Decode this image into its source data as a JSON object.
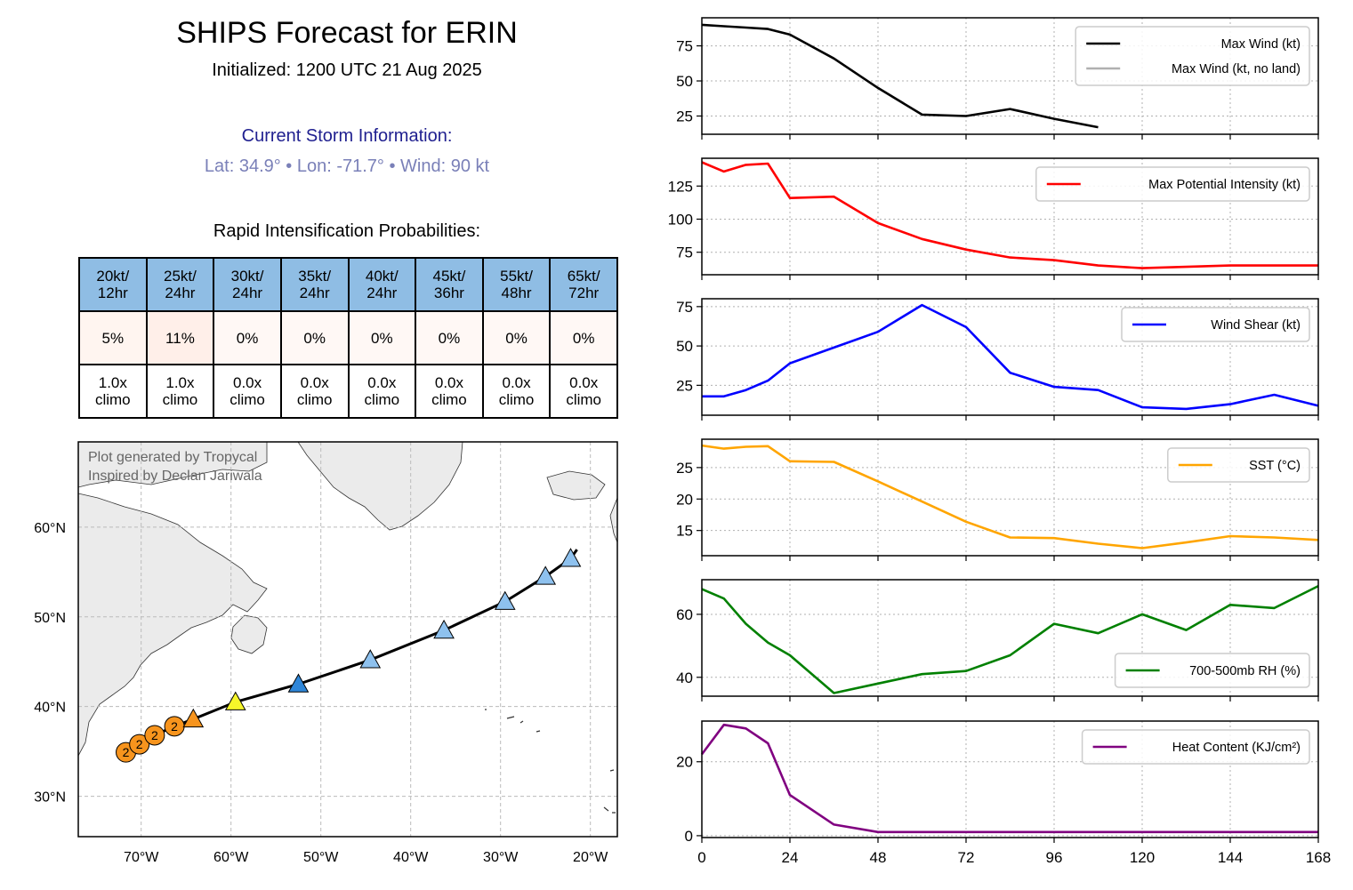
{
  "header": {
    "title": "SHIPS Forecast for ERIN",
    "initialized": "Initialized: 1200 UTC 21 Aug 2025"
  },
  "storm": {
    "heading": "Current Storm Information:",
    "info": "Lat: 34.9° • Lon: -71.7° • Wind: 90 kt"
  },
  "ri": {
    "heading": "Rapid Intensification Probabilities:",
    "columns": [
      {
        "l1": "20kt/",
        "l2": "12hr",
        "prob": "5%",
        "climo": "1.0x",
        "climo2": "climo",
        "color": "#fff5f0"
      },
      {
        "l1": "25kt/",
        "l2": "24hr",
        "prob": "11%",
        "climo": "1.0x",
        "climo2": "climo",
        "color": "#ffefe9"
      },
      {
        "l1": "30kt/",
        "l2": "24hr",
        "prob": "0%",
        "climo": "0.0x",
        "climo2": "climo",
        "color": "#fff8f5"
      },
      {
        "l1": "35kt/",
        "l2": "24hr",
        "prob": "0%",
        "climo": "0.0x",
        "climo2": "climo",
        "color": "#fff8f5"
      },
      {
        "l1": "40kt/",
        "l2": "24hr",
        "prob": "0%",
        "climo": "0.0x",
        "climo2": "climo",
        "color": "#fff8f5"
      },
      {
        "l1": "45kt/",
        "l2": "36hr",
        "prob": "0%",
        "climo": "0.0x",
        "climo2": "climo",
        "color": "#fff8f5"
      },
      {
        "l1": "55kt/",
        "l2": "48hr",
        "prob": "0%",
        "climo": "0.0x",
        "climo2": "climo",
        "color": "#fff8f5"
      },
      {
        "l1": "65kt/",
        "l2": "72hr",
        "prob": "0%",
        "climo": "0.0x",
        "climo2": "climo",
        "color": "#fff8f5"
      }
    ]
  },
  "map": {
    "credit1": "Plot generated by Tropycal",
    "credit2": "Inspired by Declan Jariwala",
    "lon_range": [
      -77,
      -17
    ],
    "lat_range": [
      25.5,
      69.5
    ],
    "lat_ticks": [
      {
        "v": 30,
        "label": "30°N"
      },
      {
        "v": 40,
        "label": "40°N"
      },
      {
        "v": 50,
        "label": "50°N"
      },
      {
        "v": 60,
        "label": "60°N"
      }
    ],
    "lon_ticks": [
      {
        "v": -70,
        "label": "70°W"
      },
      {
        "v": -60,
        "label": "60°W"
      },
      {
        "v": -50,
        "label": "50°W"
      },
      {
        "v": -40,
        "label": "40°W"
      },
      {
        "v": -30,
        "label": "30°W"
      },
      {
        "v": -20,
        "label": "20°W"
      }
    ],
    "track": [
      [
        -71.7,
        34.9
      ],
      [
        -70.2,
        35.8
      ],
      [
        -68.5,
        36.8
      ],
      [
        -66.3,
        37.8
      ],
      [
        -64.2,
        38.6
      ],
      [
        -59.5,
        40.5
      ],
      [
        -52.5,
        42.5
      ],
      [
        -44.5,
        45.2
      ],
      [
        -36.3,
        48.5
      ],
      [
        -29.5,
        51.7
      ],
      [
        -25,
        54.5
      ],
      [
        -22.2,
        56.5
      ],
      [
        -21.5,
        57.5
      ]
    ],
    "points": [
      {
        "lon": -71.7,
        "lat": 34.9,
        "shape": "circle",
        "label": "2",
        "color": "#f7941d"
      },
      {
        "lon": -70.2,
        "lat": 35.8,
        "shape": "circle",
        "label": "2",
        "color": "#f7941d"
      },
      {
        "lon": -68.5,
        "lat": 36.8,
        "shape": "circle",
        "label": "2",
        "color": "#f7941d"
      },
      {
        "lon": -66.3,
        "lat": 37.8,
        "shape": "circle",
        "label": "2",
        "color": "#f7941d"
      },
      {
        "lon": -64.2,
        "lat": 38.6,
        "shape": "triangle",
        "label": "",
        "color": "#f7941d"
      },
      {
        "lon": -59.5,
        "lat": 40.5,
        "shape": "triangle",
        "label": "",
        "color": "#f6f62a"
      },
      {
        "lon": -52.5,
        "lat": 42.5,
        "shape": "triangle",
        "label": "",
        "color": "#2f86d8"
      },
      {
        "lon": -44.5,
        "lat": 45.2,
        "shape": "triangle",
        "label": "",
        "color": "#8ec1ee"
      },
      {
        "lon": -36.3,
        "lat": 48.5,
        "shape": "triangle",
        "label": "",
        "color": "#8ec1ee"
      },
      {
        "lon": -29.5,
        "lat": 51.7,
        "shape": "triangle",
        "label": "",
        "color": "#8ec1ee"
      },
      {
        "lon": -25,
        "lat": 54.5,
        "shape": "triangle",
        "label": "",
        "color": "#8ec1ee"
      },
      {
        "lon": -22.2,
        "lat": 56.5,
        "shape": "triangle",
        "label": "",
        "color": "#8ec1ee"
      }
    ]
  },
  "chart_data": {
    "type": "line",
    "x_ticks": [
      0,
      24,
      48,
      72,
      96,
      120,
      144,
      168
    ],
    "xlim": [
      0,
      168
    ],
    "panels": [
      {
        "ylim": [
          12,
          95
        ],
        "yticks": [
          25,
          50,
          75
        ],
        "legend_pos": "top-right",
        "series": [
          {
            "name": "Max Wind (kt)",
            "color": "#000000",
            "x": [
              0,
              6,
              12,
              18,
              24,
              36,
              48,
              60,
              72,
              84,
              96,
              108
            ],
            "y": [
              90,
              89,
              88,
              87,
              83,
              66,
              45,
              26,
              25,
              30,
              23,
              17
            ]
          },
          {
            "name": "Max Wind (kt, no land)",
            "color": "#b0b0b0",
            "x": [],
            "y": []
          }
        ]
      },
      {
        "ylim": [
          58,
          146
        ],
        "yticks": [
          75,
          100,
          125
        ],
        "legend_pos": "top-right",
        "series": [
          {
            "name": "Max Potential Intensity (kt)",
            "color": "#ff0000",
            "x": [
              0,
              6,
              12,
              18,
              24,
              36,
              48,
              60,
              72,
              84,
              96,
              108,
              120,
              132,
              144,
              156,
              168
            ],
            "y": [
              143,
              136,
              141,
              142,
              116,
              117,
              97,
              85,
              77,
              71,
              69,
              65,
              63,
              64,
              65,
              65,
              65
            ]
          }
        ]
      },
      {
        "ylim": [
          6,
          80
        ],
        "yticks": [
          25,
          50,
          75
        ],
        "legend_pos": "top-right",
        "series": [
          {
            "name": "Wind Shear (kt)",
            "color": "#0000ff",
            "x": [
              0,
              6,
              12,
              18,
              24,
              36,
              48,
              60,
              72,
              84,
              96,
              108,
              120,
              132,
              144,
              156,
              168
            ],
            "y": [
              18,
              18,
              22,
              28,
              39,
              49,
              59,
              76,
              62,
              33,
              24,
              22,
              11,
              10,
              13,
              19,
              12
            ]
          }
        ]
      },
      {
        "ylim": [
          11,
          29.5
        ],
        "yticks": [
          15,
          20,
          25
        ],
        "legend_pos": "top-right",
        "series": [
          {
            "name": "SST (°C)",
            "color": "#ffa500",
            "x": [
              0,
              6,
              12,
              18,
              24,
              36,
              48,
              60,
              72,
              84,
              96,
              108,
              120,
              132,
              144,
              156,
              168
            ],
            "y": [
              28.5,
              28,
              28.3,
              28.4,
              26,
              25.9,
              22.8,
              19.6,
              16.4,
              13.9,
              13.8,
              12.9,
              12.2,
              13.1,
              14.1,
              13.9,
              13.5
            ]
          }
        ]
      },
      {
        "ylim": [
          34,
          71
        ],
        "yticks": [
          40,
          60
        ],
        "legend_pos": "bottom-right",
        "series": [
          {
            "name": "700-500mb RH (%)",
            "color": "#008000",
            "x": [
              0,
              6,
              12,
              18,
              24,
              36,
              48,
              60,
              72,
              84,
              96,
              108,
              120,
              132,
              144,
              156,
              168
            ],
            "y": [
              68,
              65,
              57,
              51,
              47,
              35,
              38,
              41,
              42,
              47,
              57,
              54,
              60,
              55,
              63,
              62,
              69
            ]
          }
        ]
      },
      {
        "ylim": [
          -0.5,
          31
        ],
        "yticks": [
          0,
          20
        ],
        "legend_pos": "top-right",
        "series": [
          {
            "name": "Heat Content (KJ/cm²)",
            "color": "#800080",
            "x": [
              0,
              6,
              12,
              18,
              24,
              36,
              48,
              60,
              72,
              84,
              96,
              108,
              120,
              132,
              144,
              156,
              168
            ],
            "y": [
              22,
              30,
              29,
              25,
              11,
              3,
              1,
              1,
              1,
              1,
              1,
              1,
              1,
              1,
              1,
              1,
              1
            ]
          }
        ]
      }
    ]
  }
}
